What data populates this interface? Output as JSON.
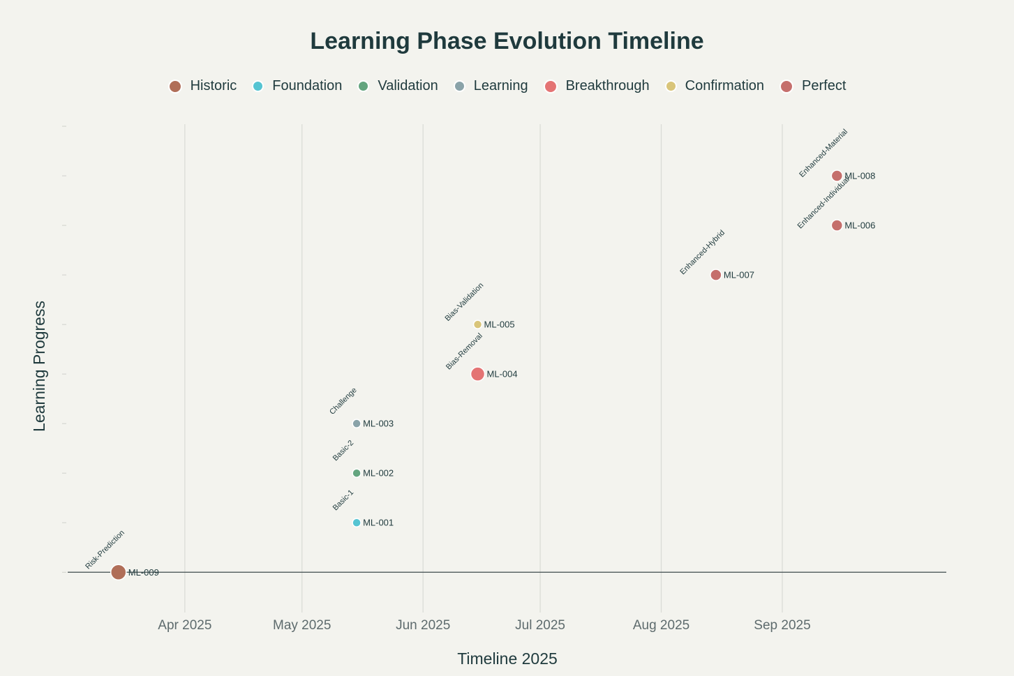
{
  "chart_data": {
    "type": "scatter",
    "title": "Learning Phase Evolution Timeline",
    "xlabel": "Timeline 2025",
    "ylabel": "Learning Progress",
    "x_ticks": [
      {
        "date": "2025-04-01",
        "label": "Apr 2025"
      },
      {
        "date": "2025-05-01",
        "label": "May 2025"
      },
      {
        "date": "2025-06-01",
        "label": "Jun 2025"
      },
      {
        "date": "2025-07-01",
        "label": "Jul 2025"
      },
      {
        "date": "2025-08-01",
        "label": "Aug 2025"
      },
      {
        "date": "2025-09-01",
        "label": "Sep 2025"
      }
    ],
    "xlim": [
      "2025-03-02",
      "2025-10-13"
    ],
    "ylim": [
      -0.7,
      9
    ],
    "y_ticks": [
      0,
      1,
      2,
      3,
      4,
      5,
      6,
      7,
      8,
      9
    ],
    "grid": "vertical",
    "legend_position": "top-center",
    "categories": [
      {
        "name": "Historic",
        "color": "#b06e58"
      },
      {
        "name": "Foundation",
        "color": "#55c4d2"
      },
      {
        "name": "Validation",
        "color": "#64a57f"
      },
      {
        "name": "Learning",
        "color": "#8aa3a9"
      },
      {
        "name": "Breakthrough",
        "color": "#e47474"
      },
      {
        "name": "Confirmation",
        "color": "#d9c57a"
      },
      {
        "name": "Perfect",
        "color": "#c56f6c"
      }
    ],
    "points": [
      {
        "id": "ML-009",
        "phase": "Risk-Prediction",
        "category": "Historic",
        "date": "2025-03-15",
        "y": 0,
        "size": 11
      },
      {
        "id": "ML-001",
        "phase": "Basic-1",
        "category": "Foundation",
        "date": "2025-05-15",
        "y": 1,
        "size": 6
      },
      {
        "id": "ML-002",
        "phase": "Basic-2",
        "category": "Validation",
        "date": "2025-05-15",
        "y": 2,
        "size": 6
      },
      {
        "id": "ML-003",
        "phase": "Challenge",
        "category": "Learning",
        "date": "2025-05-15",
        "y": 3,
        "size": 6
      },
      {
        "id": "ML-004",
        "phase": "Bias-Removal",
        "category": "Breakthrough",
        "date": "2025-06-15",
        "y": 4,
        "size": 10
      },
      {
        "id": "ML-005",
        "phase": "Bias-Validation",
        "category": "Confirmation",
        "date": "2025-06-15",
        "y": 5,
        "size": 6
      },
      {
        "id": "ML-007",
        "phase": "Enhanced-Hybrid",
        "category": "Perfect",
        "date": "2025-08-15",
        "y": 6,
        "size": 8
      },
      {
        "id": "ML-006",
        "phase": "Enhanced-Individual",
        "category": "Perfect",
        "date": "2025-09-15",
        "y": 7,
        "size": 8
      },
      {
        "id": "ML-008",
        "phase": "Enhanced-Material",
        "category": "Perfect",
        "date": "2025-09-15",
        "y": 8,
        "size": 8
      }
    ]
  }
}
